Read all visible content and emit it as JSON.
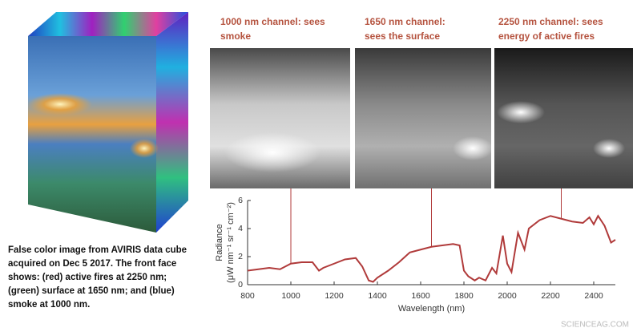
{
  "caption": [
    "False color image from AVIRIS data cube",
    "acquired on Dec 5 2017.  The front face",
    "shows: (red) active fires at 2250 nm;",
    "(green) surface at 1650 nm; and (blue)",
    "smoke at 1000 nm."
  ],
  "panels": [
    {
      "label": [
        "1000 nm channel: sees",
        "smoke"
      ],
      "wavelength": 1000
    },
    {
      "label": [
        "1650 nm channel:",
        "sees the surface"
      ],
      "wavelength": 1650
    },
    {
      "label": [
        "2250 nm channel: sees",
        "energy of active fires"
      ],
      "wavelength": 2250
    }
  ],
  "watermark": "SCIENCEAG.COM",
  "chart_data": {
    "type": "line",
    "xlabel": "Wavelength (nm)",
    "ylabel": [
      "Radiance",
      "(μW nm⁻¹ sr⁻¹ cm⁻²)"
    ],
    "x": [
      800,
      850,
      900,
      950,
      1000,
      1050,
      1100,
      1130,
      1150,
      1200,
      1250,
      1300,
      1330,
      1360,
      1380,
      1400,
      1450,
      1500,
      1550,
      1600,
      1650,
      1700,
      1750,
      1780,
      1800,
      1820,
      1850,
      1870,
      1900,
      1930,
      1950,
      1980,
      2000,
      2020,
      2050,
      2080,
      2100,
      2150,
      2200,
      2250,
      2300,
      2350,
      2380,
      2400,
      2420,
      2450,
      2480,
      2500
    ],
    "series": [
      {
        "color": "#b03a3a",
        "values": [
          1.0,
          1.1,
          1.2,
          1.1,
          1.5,
          1.6,
          1.6,
          1.0,
          1.2,
          1.5,
          1.8,
          1.9,
          1.3,
          0.3,
          0.2,
          0.5,
          1.0,
          1.6,
          2.3,
          2.5,
          2.7,
          2.8,
          2.9,
          2.8,
          1.0,
          0.6,
          0.3,
          0.5,
          0.3,
          1.2,
          0.8,
          3.5,
          1.5,
          0.9,
          3.7,
          2.5,
          4.0,
          4.6,
          4.9,
          4.7,
          4.5,
          4.4,
          4.8,
          4.3,
          4.9,
          4.2,
          3.0,
          3.2
        ]
      }
    ],
    "xlim": [
      800,
      2500
    ],
    "ylim": [
      0,
      6
    ],
    "xticks": [
      800,
      1000,
      1200,
      1400,
      1600,
      1800,
      2000,
      2200,
      2400
    ],
    "yticks": [
      0,
      2,
      4,
      6
    ]
  }
}
